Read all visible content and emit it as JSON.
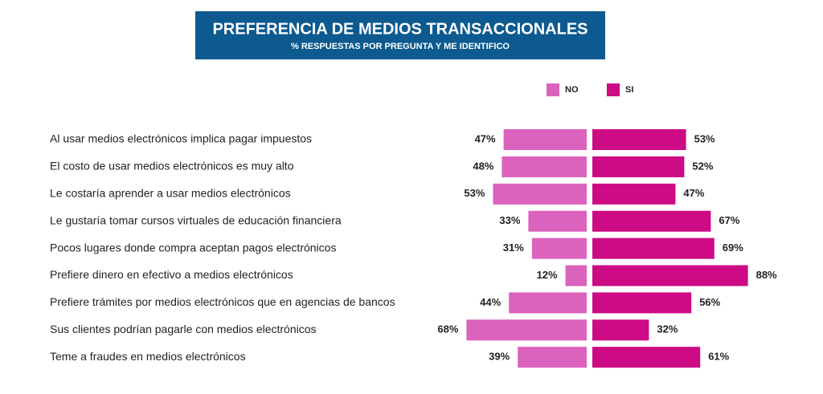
{
  "chart_data": {
    "type": "bar",
    "title": "PREFERENCIA DE MEDIOS TRANSACCIONALES",
    "subtitle": "% RESPUESTAS POR PREGUNTA Y ME IDENTIFICO",
    "categories": [
      "Al usar medios electrónicos implica pagar impuestos",
      "El costo de usar medios electrónicos es muy alto",
      "Le costaría aprender a usar medios electrónicos",
      "Le gustaría tomar cursos virtuales de educación financiera",
      "Pocos lugares donde compra aceptan pagos electrónicos",
      "Prefiere dinero en efectivo a medios electrónicos",
      "Prefiere trámites por medios electrónicos que en agencias de bancos",
      "Sus clientes podrían pagarle con medios electrónicos",
      "Teme a fraudes en medios electrónicos"
    ],
    "series": [
      {
        "name": "NO",
        "color": "#db62bd",
        "values": [
          47,
          48,
          53,
          33,
          31,
          12,
          44,
          68,
          39
        ],
        "value_labels": [
          "47%",
          "48%",
          "53%",
          "33%",
          "31%",
          "12%",
          "44%",
          "68%",
          "39%"
        ]
      },
      {
        "name": "SI",
        "color": "#cc0b84",
        "values": [
          53,
          52,
          47,
          67,
          69,
          88,
          56,
          32,
          61
        ],
        "value_labels": [
          "53%",
          "52%",
          "47%",
          "67%",
          "69%",
          "88%",
          "56%",
          "32%",
          "61%"
        ]
      }
    ]
  }
}
